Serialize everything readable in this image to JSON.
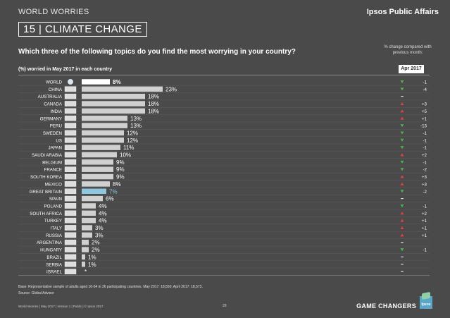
{
  "header": {
    "report_title": "WORLD WORRIES",
    "brand": "Ipsos Public Affairs",
    "topic": "15 | CLIMATE CHANGE",
    "question": "Which three of the following topics do you find the most worrying in your country?",
    "change_note": "% change compared with previous month:",
    "subtitle": "(%) worried in May 2017 in each country",
    "compare_month": "Apr 2017"
  },
  "colors": {
    "background": "#4a4a4a",
    "bar": "#d0d0d0",
    "world_bar": "#ffffff",
    "highlight_bar": "#8ec7e0",
    "highlight_label": "#8ec7e0",
    "up": "#e04040",
    "down": "#4caf50",
    "flat": "#e0e0e0"
  },
  "chart_data": {
    "type": "bar",
    "orientation": "horizontal",
    "title": "15 | CLIMATE CHANGE",
    "xlabel": "",
    "ylabel": "",
    "xlim": [
      0,
      25
    ],
    "grid": false,
    "categories": [
      "WORLD",
      "CHINA",
      "AUSTRALIA",
      "CANADA",
      "INDIA",
      "GERMANY",
      "PERU",
      "SWEDEN",
      "US",
      "JAPAN",
      "SAUDI ARABIA",
      "BELGIUM",
      "FRANCE",
      "SOUTH KOREA",
      "MEXICO",
      "GREAT BRITAIN",
      "SPAIN",
      "POLAND",
      "SOUTH AFRICA",
      "TURKEY",
      "ITALY",
      "RUSSIA",
      "ARGENTINA",
      "HUNGARY",
      "BRAZIL",
      "SERBIA",
      "ISRAEL"
    ],
    "values": [
      8,
      23,
      18,
      18,
      18,
      13,
      13,
      12,
      12,
      11,
      10,
      9,
      9,
      9,
      8,
      7,
      6,
      4,
      4,
      4,
      3,
      3,
      2,
      2,
      1,
      1,
      0
    ],
    "value_labels": [
      "8%",
      "23%",
      "18%",
      "18%",
      "18%",
      "13%",
      "13%",
      "12%",
      "12%",
      "11%",
      "10%",
      "9%",
      "9%",
      "9%",
      "8%",
      "7%",
      "6%",
      "4%",
      "4%",
      "4%",
      "3%",
      "3%",
      "2%",
      "2%",
      "1%",
      "1%",
      "*"
    ],
    "highlight": [
      "WORLD",
      "GREAT BRITAIN"
    ],
    "change_direction": [
      "down",
      "down",
      "flat",
      "up",
      "up",
      "up",
      "down",
      "down",
      "down",
      "down",
      "up",
      "down",
      "down",
      "up",
      "up",
      "down",
      "flat",
      "down",
      "up",
      "up",
      "up",
      "up",
      "flat",
      "down",
      "flat",
      "flat",
      "flat"
    ],
    "change_labels": [
      "-1",
      "-4",
      "",
      "+3",
      "+5",
      "+1",
      "-13",
      "-1",
      "-1",
      "-1",
      "+2",
      "-1",
      "-2",
      "+3",
      "+3",
      "-2",
      "",
      "-1",
      "+2",
      "+1",
      "+1",
      "+1",
      "",
      "-1",
      "",
      "",
      ""
    ]
  },
  "footer": {
    "base": "Base: Representative sample of adults aged 16-64 in 26 participating countries. May 2017: 18,550; April 2017: 18,573.",
    "source": "Source: Global Advisor",
    "left": "World Worries | May 2017 | Version 1 | Public | © Ipsos 2017",
    "page": "28",
    "tagline": "GAME CHANGERS",
    "logo_text": "Ipsos"
  }
}
